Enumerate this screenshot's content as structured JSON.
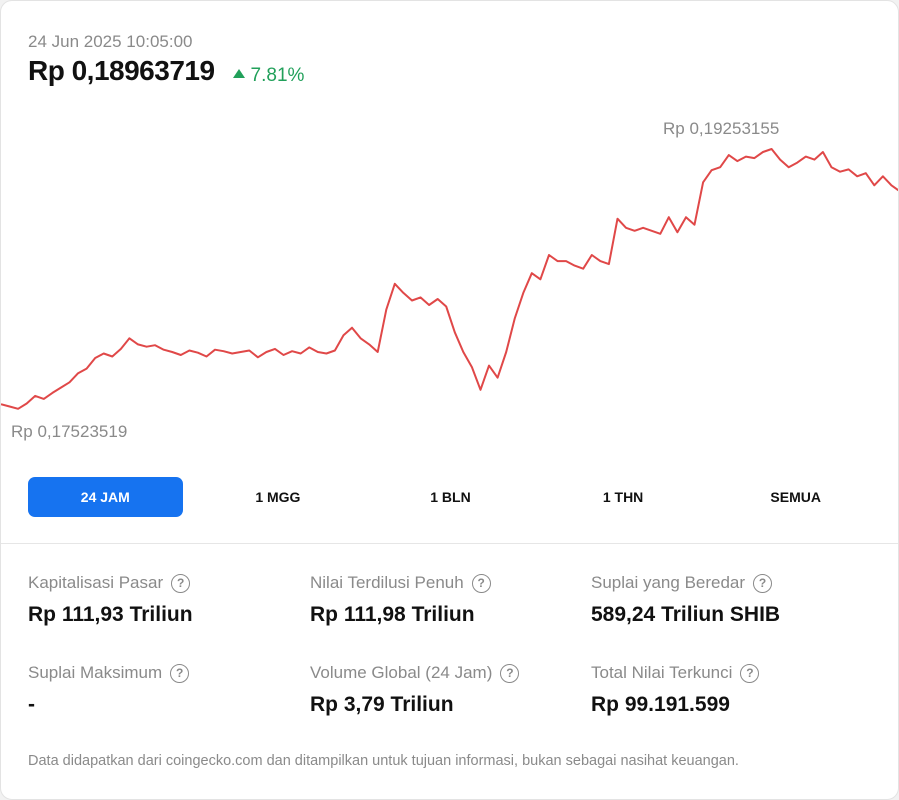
{
  "header": {
    "timestamp": "24 Jun 2025 10:05:00",
    "price": "Rp 0,18963719",
    "change": "7.81%"
  },
  "chart_data": {
    "type": "line",
    "high_label": "Rp 0,19253155",
    "low_label": "Rp 0,17523519",
    "ylim": [
      0.17523519,
      0.19253155
    ],
    "series": [
      {
        "color": "#e04848",
        "values": [
          0.17555,
          0.1754,
          0.17525,
          0.1756,
          0.1761,
          0.1759,
          0.1763,
          0.17665,
          0.177,
          0.1776,
          0.1779,
          0.1786,
          0.1789,
          0.1787,
          0.1792,
          0.1799,
          0.1795,
          0.17935,
          0.17945,
          0.17915,
          0.179,
          0.1788,
          0.1791,
          0.17895,
          0.1787,
          0.17915,
          0.17905,
          0.1789,
          0.179,
          0.1791,
          0.17865,
          0.179,
          0.1792,
          0.1788,
          0.17905,
          0.1789,
          0.1793,
          0.179,
          0.1789,
          0.1791,
          0.1801,
          0.1806,
          0.1799,
          0.1795,
          0.179,
          0.1818,
          0.1835,
          0.1829,
          0.1824,
          0.1826,
          0.1821,
          0.1825,
          0.182,
          0.1803,
          0.179,
          0.178,
          0.1765,
          0.1781,
          0.1773,
          0.179,
          0.1812,
          0.1829,
          0.1842,
          0.1838,
          0.1854,
          0.185,
          0.185,
          0.1847,
          0.1845,
          0.1854,
          0.185,
          0.1848,
          0.1878,
          0.1872,
          0.187,
          0.1872,
          0.187,
          0.1868,
          0.1879,
          0.1869,
          0.1879,
          0.1874,
          0.1902,
          0.191,
          0.1912,
          0.192,
          0.1916,
          0.1919,
          0.1918,
          0.1922,
          0.1924,
          0.1917,
          0.1912,
          0.1915,
          0.1919,
          0.1917,
          0.1922,
          0.1912,
          0.1909,
          0.19105,
          0.1906,
          0.1908,
          0.19,
          0.1906,
          0.19,
          0.1896
        ]
      }
    ]
  },
  "tabs": [
    {
      "label": "24 JAM",
      "active": true
    },
    {
      "label": "1 MGG",
      "active": false
    },
    {
      "label": "1 BLN",
      "active": false
    },
    {
      "label": "1 THN",
      "active": false
    },
    {
      "label": "SEMUA",
      "active": false
    }
  ],
  "stats": [
    {
      "label": "Kapitalisasi Pasar",
      "value": "Rp 111,93 Triliun"
    },
    {
      "label": "Nilai Terdilusi Penuh",
      "value": "Rp 111,98 Triliun"
    },
    {
      "label": "Suplai yang Beredar",
      "value": "589,24 Triliun SHIB"
    },
    {
      "label": "Suplai Maksimum",
      "value": "-"
    },
    {
      "label": "Volume Global (24 Jam)",
      "value": "Rp 3,79 Triliun"
    },
    {
      "label": "Total Nilai Terkunci",
      "value": "Rp 99.191.599"
    }
  ],
  "help_glyph": "?",
  "disclaimer": "Data didapatkan dari coingecko.com dan ditampilkan untuk tujuan informasi, bukan sebagai nasihat keuangan.",
  "colors": {
    "accent": "#1673f0",
    "positive": "#21a05a",
    "line": "#e04848",
    "muted": "#8a8a8a"
  }
}
